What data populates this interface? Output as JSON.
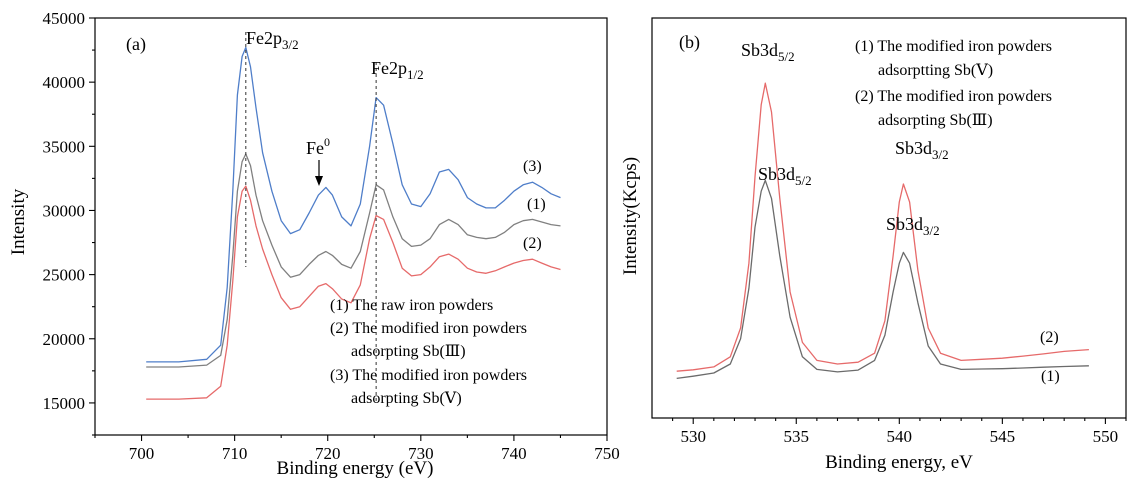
{
  "chart_data": [
    {
      "type": "line",
      "panel_label": "(a)",
      "xlabel": "Binding energy (eV)",
      "ylabel": "Intensity",
      "xlim": [
        695,
        750
      ],
      "ylim": [
        12500,
        45000
      ],
      "xticks": [
        "700",
        "710",
        "720",
        "730",
        "740",
        "750"
      ],
      "yticks": [
        "15000",
        "20000",
        "25000",
        "30000",
        "35000",
        "40000",
        "45000"
      ],
      "peak_labels": [
        {
          "base": "Fe2p",
          "sub": "3/2",
          "x": 711.2
        },
        {
          "base": "Fe2p",
          "sub": "1/2",
          "x": 725.2
        },
        {
          "base": "Fe",
          "sup": "0",
          "x": 719.5
        }
      ],
      "legend": [
        "(1)  The raw iron powders",
        "(2)  The modified iron powders",
        "adsorpting Sb(Ⅲ)",
        "(3)  The modified iron powders",
        "adsorpting Sb(Ⅴ)"
      ],
      "series": [
        {
          "name": "(3)",
          "color": "#4f7ec9",
          "x": [
            700.5,
            704,
            707,
            708.5,
            709.2,
            709.8,
            710.3,
            710.8,
            711.2,
            711.7,
            712.3,
            713,
            714,
            715,
            716,
            717,
            718,
            719,
            719.8,
            720.5,
            721.5,
            722.5,
            723.5,
            724.5,
            725.2,
            726,
            727,
            728,
            729,
            730,
            731,
            732,
            733,
            734,
            735,
            736,
            737,
            738,
            739,
            740,
            741,
            742,
            743,
            744,
            745
          ],
          "y": [
            18200,
            18200,
            18400,
            19500,
            24000,
            31500,
            39000,
            42000,
            42700,
            41200,
            38000,
            34500,
            31500,
            29200,
            28200,
            28500,
            29800,
            31200,
            31800,
            31200,
            29500,
            28800,
            30500,
            35000,
            38800,
            38200,
            35200,
            32000,
            30500,
            30300,
            31300,
            33000,
            33200,
            32400,
            31000,
            30500,
            30200,
            30200,
            30800,
            31500,
            32000,
            32200,
            31800,
            31300,
            31000
          ]
        },
        {
          "name": "(1)",
          "color": "#808080",
          "x": [
            700.5,
            704,
            707,
            708.5,
            709.2,
            709.8,
            710.3,
            710.8,
            711.2,
            711.7,
            712.3,
            713,
            714,
            715,
            716,
            717,
            718,
            719,
            719.8,
            720.5,
            721.5,
            722.5,
            723.5,
            724.5,
            725.2,
            726,
            727,
            728,
            729,
            730,
            731,
            732,
            733,
            734,
            735,
            736,
            737,
            738,
            739,
            740,
            741,
            742,
            743,
            744,
            745
          ],
          "y": [
            17800,
            17800,
            17950,
            18700,
            21500,
            26500,
            31500,
            33800,
            34400,
            33500,
            31200,
            29200,
            27300,
            25600,
            24800,
            25000,
            25800,
            26500,
            26800,
            26500,
            25800,
            25500,
            26800,
            29800,
            32000,
            31600,
            29500,
            27800,
            27200,
            27300,
            27800,
            28900,
            29300,
            28900,
            28100,
            27900,
            27800,
            27900,
            28300,
            28900,
            29200,
            29300,
            29100,
            28900,
            28800
          ]
        },
        {
          "name": "(2)",
          "color": "#e66a6a",
          "x": [
            700.5,
            704,
            707,
            708.5,
            709.2,
            709.8,
            710.3,
            710.8,
            711.2,
            711.7,
            712.3,
            713,
            714,
            715,
            716,
            717,
            718,
            719,
            719.8,
            720.5,
            721.5,
            722.5,
            723.5,
            724.5,
            725.2,
            726,
            727,
            728,
            729,
            730,
            731,
            732,
            733,
            734,
            735,
            736,
            737,
            738,
            739,
            740,
            741,
            742,
            743,
            744,
            745
          ],
          "y": [
            15300,
            15300,
            15400,
            16300,
            19500,
            24500,
            29500,
            31500,
            31900,
            30800,
            28800,
            27000,
            25000,
            23200,
            22300,
            22500,
            23300,
            24100,
            24300,
            23900,
            23100,
            22800,
            24200,
            27800,
            29600,
            29300,
            27500,
            25500,
            24900,
            25000,
            25600,
            26400,
            26600,
            26200,
            25500,
            25200,
            25100,
            25300,
            25600,
            25900,
            26100,
            26200,
            25900,
            25600,
            25400
          ]
        }
      ],
      "series_labels": [
        "(3)",
        "(1)",
        "(2)"
      ]
    },
    {
      "type": "line",
      "panel_label": "(b)",
      "xlabel": "Binding energy, eV",
      "ylabel": "Intensity(Kcps)",
      "xlim": [
        528,
        551
      ],
      "ylim": [
        0,
        100
      ],
      "xticks": [
        "530",
        "535",
        "540",
        "545",
        "550"
      ],
      "peak_labels": [
        {
          "base": "Sb3d",
          "sub": "5/2",
          "x": 533.5,
          "series": "(2)"
        },
        {
          "base": "Sb3d",
          "sub": "5/2",
          "x": 533.5,
          "series": "(1)"
        },
        {
          "base": "Sb3d",
          "sub": "3/2",
          "x": 540.2,
          "series": "(2)"
        },
        {
          "base": "Sb3d",
          "sub": "3/2",
          "x": 540.2,
          "series": "(1)"
        }
      ],
      "legend": [
        "(1) The modified iron powders",
        "adsorptting Sb(Ⅴ)",
        "(2) The modified iron powders",
        "adsorpting Sb(Ⅲ)"
      ],
      "series": [
        {
          "name": "(2)",
          "color": "#e66a6a",
          "x": [
            529.2,
            530,
            531,
            531.8,
            532.3,
            532.7,
            533,
            533.3,
            533.5,
            533.8,
            534.2,
            534.7,
            535.3,
            536,
            537,
            538,
            538.8,
            539.3,
            539.7,
            540,
            540.2,
            540.5,
            540.9,
            541.4,
            542,
            543,
            544,
            545,
            546,
            547,
            548,
            549.2
          ],
          "y": [
            8,
            8.4,
            9.2,
            12,
            20,
            38,
            62,
            82,
            88,
            80,
            56,
            30,
            16,
            11,
            10,
            10.5,
            13,
            22,
            40,
            55,
            60,
            55,
            36,
            20,
            13,
            11,
            11.3,
            11.6,
            12.2,
            12.8,
            13.5,
            14
          ]
        },
        {
          "name": "(1)",
          "color": "#6b6b6b",
          "x": [
            529.2,
            530,
            531,
            531.8,
            532.3,
            532.7,
            533,
            533.3,
            533.5,
            533.8,
            534.2,
            534.7,
            535.3,
            536,
            537,
            538,
            538.8,
            539.3,
            539.7,
            540,
            540.2,
            540.5,
            540.9,
            541.4,
            542,
            543,
            544,
            545,
            546,
            547,
            548,
            549.2
          ],
          "y": [
            6,
            6.6,
            7.5,
            10,
            17,
            31,
            48,
            58,
            61,
            56,
            40,
            23,
            12,
            8.5,
            7.8,
            8.3,
            11,
            18,
            30,
            38,
            41,
            38,
            27,
            15,
            10,
            8.5,
            8.6,
            8.7,
            8.9,
            9.1,
            9.3,
            9.5
          ]
        }
      ],
      "series_labels": [
        "(2)",
        "(1)"
      ]
    }
  ]
}
